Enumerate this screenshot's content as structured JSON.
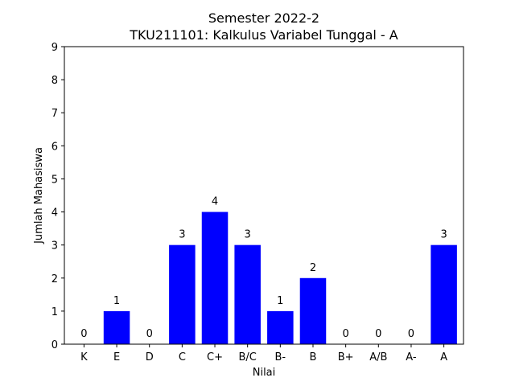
{
  "chart_data": {
    "type": "bar",
    "title": "Semester 2022-2",
    "subtitle": "TKU211101: Kalkulus Variabel Tunggal - A",
    "xlabel": "Nilai",
    "ylabel": "Jumlah Mahasiswa",
    "categories": [
      "K",
      "E",
      "D",
      "C",
      "C+",
      "B/C",
      "B-",
      "B",
      "B+",
      "A/B",
      "A-",
      "A"
    ],
    "values": [
      0,
      1,
      0,
      3,
      4,
      3,
      1,
      2,
      0,
      0,
      0,
      3
    ],
    "ylim": [
      0,
      9
    ],
    "yticks": [
      0,
      1,
      2,
      3,
      4,
      5,
      6,
      7,
      8,
      9
    ],
    "bar_color": "#0000ff",
    "grid": false,
    "legend": "none"
  }
}
